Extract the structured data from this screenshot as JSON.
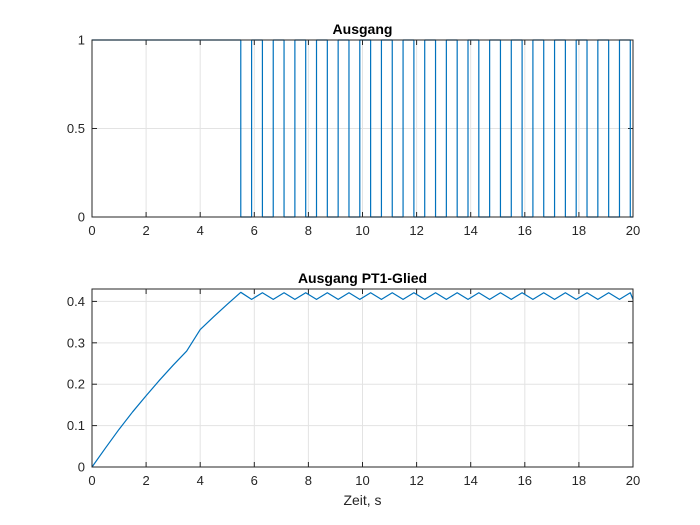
{
  "chart_data": [
    {
      "type": "line",
      "title": "Ausgang",
      "xlabel": "",
      "ylabel": "",
      "xlim": [
        0,
        20
      ],
      "ylim": [
        0,
        1
      ],
      "xticks": [
        "0",
        "2",
        "4",
        "6",
        "8",
        "10",
        "12",
        "14",
        "16",
        "18",
        "20"
      ],
      "yticks": [
        "0",
        "0.5",
        "1"
      ],
      "grid": true,
      "series": [
        {
          "color": "#0072bd",
          "x": [
            0,
            5.5,
            5.5,
            5.9,
            5.9,
            6.3,
            6.3,
            6.7,
            6.7,
            7.1,
            7.1,
            7.5,
            7.5,
            7.9,
            7.9,
            8.3,
            8.3,
            8.7,
            8.7,
            9.1,
            9.1,
            9.5,
            9.5,
            9.9,
            9.9,
            10.3,
            10.3,
            10.7,
            10.7,
            11.1,
            11.1,
            11.5,
            11.5,
            11.9,
            11.9,
            12.3,
            12.3,
            12.7,
            12.7,
            13.1,
            13.1,
            13.5,
            13.5,
            13.9,
            13.9,
            14.3,
            14.3,
            14.7,
            14.7,
            15.1,
            15.1,
            15.5,
            15.5,
            15.9,
            15.9,
            16.3,
            16.3,
            16.7,
            16.7,
            17.1,
            17.1,
            17.5,
            17.5,
            17.9,
            17.9,
            18.3,
            18.3,
            18.7,
            18.7,
            19.1,
            19.1,
            19.5,
            19.5,
            19.9,
            19.9,
            20
          ],
          "y": [
            1,
            1,
            0,
            0,
            1,
            1,
            0,
            0,
            1,
            1,
            0,
            0,
            1,
            1,
            0,
            0,
            1,
            1,
            0,
            0,
            1,
            1,
            0,
            0,
            1,
            1,
            0,
            0,
            1,
            1,
            0,
            0,
            1,
            1,
            0,
            0,
            1,
            1,
            0,
            0,
            1,
            1,
            0,
            0,
            1,
            1,
            0,
            0,
            1,
            1,
            0,
            0,
            1,
            1,
            0,
            0,
            1,
            1,
            0,
            0,
            1,
            1,
            0,
            0,
            1,
            1,
            0,
            0,
            1,
            1,
            0,
            0,
            1,
            1,
            0,
            0
          ]
        }
      ]
    },
    {
      "type": "line",
      "title": "Ausgang PT1-Glied",
      "xlabel": "Zeit, s",
      "ylabel": "",
      "xlim": [
        0,
        20
      ],
      "ylim": [
        0,
        0.43
      ],
      "xticks": [
        "0",
        "2",
        "4",
        "6",
        "8",
        "10",
        "12",
        "14",
        "16",
        "18",
        "20"
      ],
      "yticks": [
        "0",
        "0.1",
        "0.2",
        "0.3",
        "0.4"
      ],
      "grid": true,
      "series": [
        {
          "color": "#0072bd",
          "x": [
            0,
            0.5,
            1,
            1.5,
            2,
            2.5,
            3,
            3.5,
            4,
            4.5,
            5,
            5.5,
            5.9,
            6.3,
            6.7,
            7.1,
            7.5,
            7.9,
            8.3,
            8.7,
            9.1,
            9.5,
            9.9,
            10.3,
            10.7,
            11.1,
            11.5,
            11.9,
            12.3,
            12.7,
            13.1,
            13.5,
            13.9,
            14.3,
            14.7,
            15.1,
            15.5,
            15.9,
            16.3,
            16.7,
            17.1,
            17.5,
            17.9,
            18.3,
            18.7,
            19.1,
            19.5,
            19.9,
            20
          ],
          "y": [
            0,
            0.046,
            0.091,
            0.133,
            0.172,
            0.21,
            0.246,
            0.28,
            0.332,
            0.363,
            0.393,
            0.422,
            0.405,
            0.421,
            0.405,
            0.421,
            0.405,
            0.421,
            0.405,
            0.421,
            0.405,
            0.421,
            0.405,
            0.421,
            0.405,
            0.421,
            0.405,
            0.421,
            0.405,
            0.421,
            0.405,
            0.421,
            0.405,
            0.421,
            0.405,
            0.421,
            0.405,
            0.421,
            0.405,
            0.421,
            0.405,
            0.421,
            0.405,
            0.421,
            0.405,
            0.421,
            0.405,
            0.421,
            0.405
          ]
        }
      ]
    }
  ]
}
